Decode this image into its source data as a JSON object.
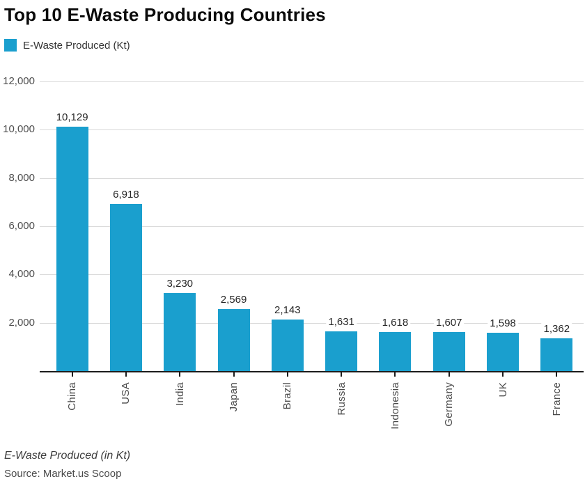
{
  "header": {
    "title": "Top 10 E-Waste Producing Countries"
  },
  "legend": {
    "label": "E-Waste Produced (Kt)",
    "swatch_color": "#1A9FCE"
  },
  "chart_data": {
    "type": "bar",
    "title": "Top 10 E-Waste Producing Countries",
    "series_name": "E-Waste Produced (Kt)",
    "categories": [
      "China",
      "USA",
      "India",
      "Japan",
      "Brazil",
      "Russia",
      "Indonesia",
      "Germany",
      "UK",
      "France"
    ],
    "values": [
      10129,
      6918,
      3230,
      2569,
      2143,
      1631,
      1618,
      1607,
      1598,
      1362
    ],
    "value_labels": [
      "10,129",
      "6,918",
      "3,230",
      "2,569",
      "2,143",
      "1,631",
      "1,618",
      "1,607",
      "1,598",
      "1,362"
    ],
    "xlabel": "",
    "ylabel": "",
    "ylim": [
      0,
      12000
    ],
    "ytick_step": 2000,
    "ytick_labels": [
      "2,000",
      "4,000",
      "6,000",
      "8,000",
      "10,000",
      "12,000"
    ],
    "grid": true,
    "legend_position": "top-left",
    "bar_color": "#1A9FCE"
  },
  "footer": {
    "note": "E-Waste Produced (in Kt)",
    "source": "Source: Market.us Scoop"
  }
}
